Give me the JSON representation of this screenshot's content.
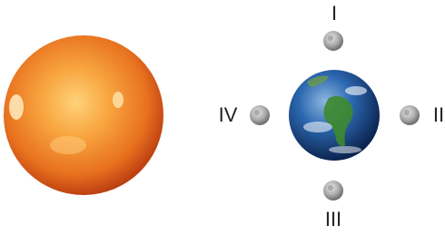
{
  "moons": [
    {
      "label": "I"
    },
    {
      "label": "II"
    },
    {
      "label": "III"
    },
    {
      "label": "IV"
    }
  ]
}
